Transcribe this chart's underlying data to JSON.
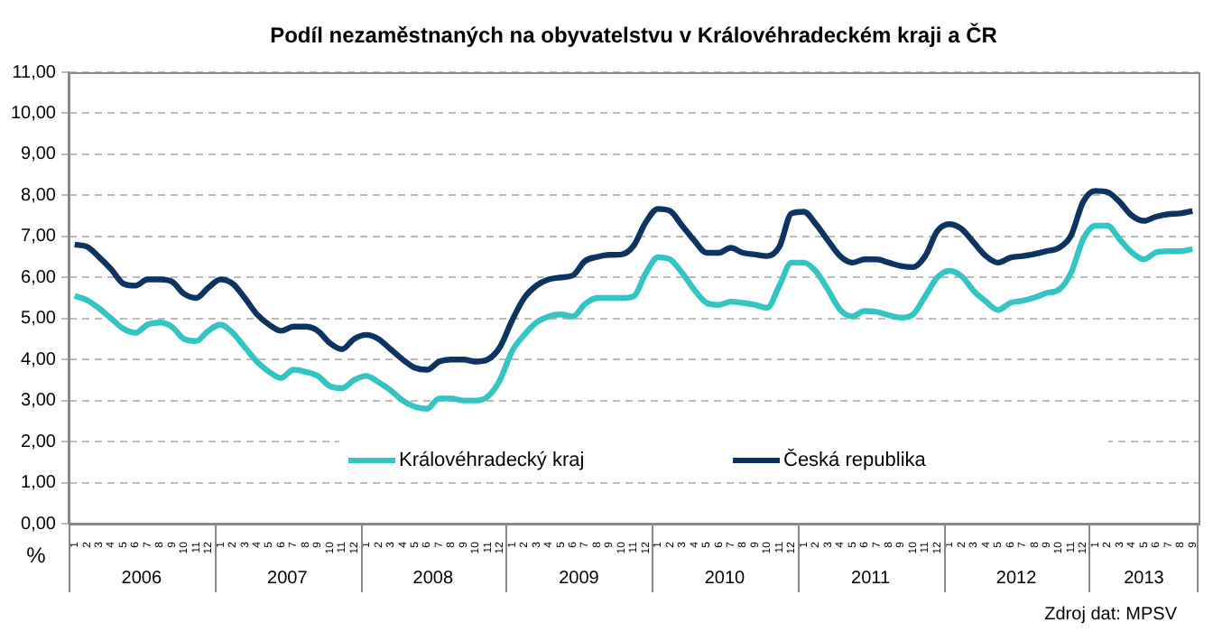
{
  "chart_data": {
    "type": "line",
    "title": "Podíl nezaměstnaných na obyvatelstvu v Královéhradeckém kraji a ČR",
    "ylabel": "%",
    "annotations": [
      "2006",
      "2007",
      "2008",
      "2009",
      "2010",
      "2011",
      "2012",
      "2013",
      "Zdroj dat: MPSV"
    ],
    "categories": [
      "1",
      "2",
      "3",
      "4",
      "5",
      "6",
      "7",
      "8",
      "9",
      "10",
      "11",
      "12",
      "1",
      "2",
      "3",
      "4",
      "5",
      "6",
      "7",
      "8",
      "9",
      "10",
      "11",
      "12",
      "1",
      "2",
      "3",
      "4",
      "5",
      "6",
      "7",
      "8",
      "9",
      "10",
      "11",
      "12",
      "1",
      "2",
      "3",
      "4",
      "5",
      "6",
      "7",
      "8",
      "9",
      "10",
      "11",
      "12",
      "1",
      "2",
      "3",
      "4",
      "5",
      "6",
      "7",
      "8",
      "9",
      "10",
      "11",
      "12",
      "1",
      "2",
      "3",
      "4",
      "5",
      "6",
      "7",
      "8",
      "9",
      "10",
      "11",
      "12",
      "1",
      "2",
      "3",
      "4",
      "5",
      "6",
      "7",
      "8",
      "9",
      "10",
      "11",
      "12",
      "1",
      "2",
      "3",
      "4",
      "5",
      "6",
      "7",
      "8",
      "9"
    ],
    "series": [
      {
        "name": "Královéhradecký kraj",
        "color": "#33c4c4",
        "values": [
          5.55,
          5.45,
          5.25,
          5.0,
          4.75,
          4.65,
          4.85,
          4.9,
          4.8,
          4.5,
          4.45,
          4.7,
          4.85,
          4.65,
          4.3,
          3.95,
          3.7,
          3.55,
          3.75,
          3.7,
          3.6,
          3.35,
          3.3,
          3.5,
          3.6,
          3.45,
          3.25,
          3.0,
          2.85,
          2.8,
          3.05,
          3.05,
          3.0,
          3.0,
          3.1,
          3.5,
          4.2,
          4.6,
          4.9,
          5.05,
          5.1,
          5.05,
          5.35,
          5.5,
          5.5,
          5.5,
          5.54,
          6.1,
          6.49,
          6.44,
          6.11,
          5.7,
          5.38,
          5.33,
          5.41,
          5.38,
          5.33,
          5.26,
          5.8,
          6.36,
          6.36,
          6.15,
          5.7,
          5.21,
          5.05,
          5.18,
          5.16,
          5.08,
          5.02,
          5.1,
          5.54,
          6.0,
          6.16,
          6.03,
          5.67,
          5.41,
          5.21,
          5.38,
          5.43,
          5.51,
          5.62,
          5.7,
          6.11,
          6.93,
          7.26,
          7.26,
          6.93,
          6.61,
          6.44,
          6.61,
          6.64,
          6.64,
          6.69
        ]
      },
      {
        "name": "Česká republika",
        "color": "#0d3461",
        "values": [
          6.8,
          6.75,
          6.5,
          6.2,
          5.85,
          5.8,
          5.95,
          5.95,
          5.9,
          5.6,
          5.5,
          5.75,
          5.95,
          5.85,
          5.5,
          5.1,
          4.85,
          4.7,
          4.8,
          4.8,
          4.7,
          4.4,
          4.25,
          4.5,
          4.6,
          4.5,
          4.25,
          4.0,
          3.8,
          3.75,
          3.95,
          4.0,
          4.0,
          3.95,
          4.0,
          4.3,
          4.95,
          5.5,
          5.8,
          5.95,
          6.0,
          6.05,
          6.4,
          6.5,
          6.55,
          6.56,
          6.77,
          7.34,
          7.67,
          7.62,
          7.26,
          6.9,
          6.6,
          6.6,
          6.72,
          6.6,
          6.56,
          6.52,
          6.75,
          7.56,
          7.6,
          7.3,
          6.9,
          6.52,
          6.36,
          6.44,
          6.44,
          6.36,
          6.28,
          6.25,
          6.52,
          7.13,
          7.3,
          7.18,
          6.85,
          6.52,
          6.36,
          6.48,
          6.52,
          6.57,
          6.64,
          6.72,
          7.02,
          7.84,
          8.11,
          8.08,
          7.84,
          7.51,
          7.38,
          7.48,
          7.54,
          7.56,
          7.62
        ]
      }
    ],
    "ylim": [
      0,
      11
    ],
    "yticks": [
      {
        "value": 0,
        "label": "0,00"
      },
      {
        "value": 1,
        "label": "1,00"
      },
      {
        "value": 2,
        "label": "2,00"
      },
      {
        "value": 3,
        "label": "3,00"
      },
      {
        "value": 4,
        "label": "4,00"
      },
      {
        "value": 5,
        "label": "5,00"
      },
      {
        "value": 6,
        "label": "6,00"
      },
      {
        "value": 7,
        "label": "7,00"
      },
      {
        "value": 8,
        "label": "8,00"
      },
      {
        "value": 9,
        "label": "9,00"
      },
      {
        "value": 10,
        "label": "10,00"
      },
      {
        "value": 11,
        "label": "11,00"
      }
    ],
    "grid": "y",
    "legend": "bottom",
    "marker": "none",
    "line_style": "solid"
  }
}
